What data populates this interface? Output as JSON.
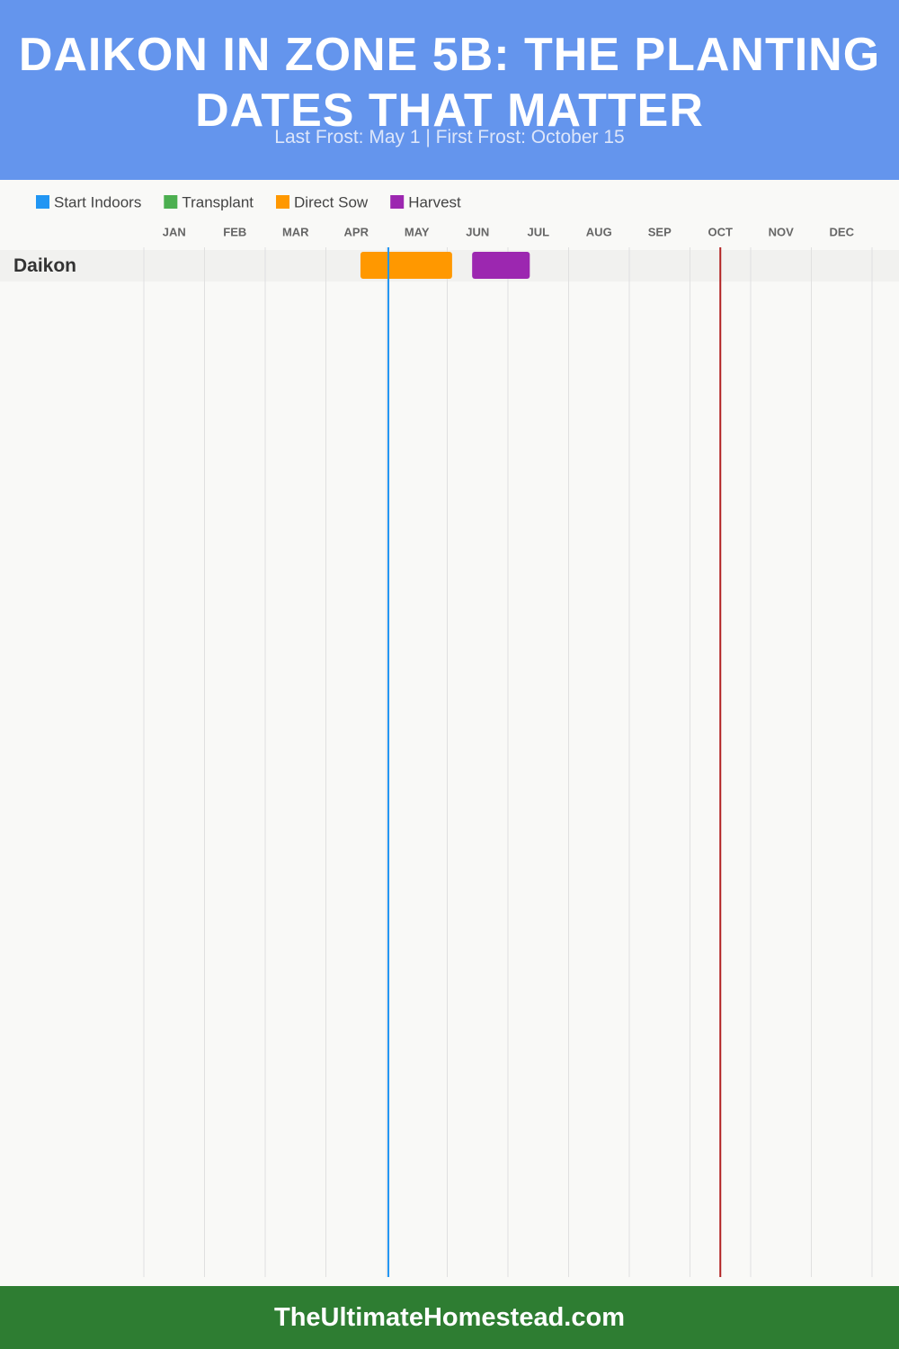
{
  "chart_data": {
    "type": "gantt",
    "title": "DAIKON IN ZONE 5B: THE PLANTING DATES THAT MATTER",
    "subtitle": "Last Frost: May 1 | First Frost: October 15",
    "footer": "TheUltimateHomestead.com",
    "categories": [
      "JAN",
      "FEB",
      "MAR",
      "APR",
      "MAY",
      "JUN",
      "JUL",
      "AUG",
      "SEP",
      "OCT",
      "NOV",
      "DEC"
    ],
    "rows": [
      "Daikon"
    ],
    "xlim": [
      0,
      12
    ],
    "series": [
      {
        "name": "Start Indoors",
        "color": "#2196f3",
        "start": [
          null
        ],
        "end": [
          null
        ]
      },
      {
        "name": "Transplant",
        "color": "#4caf50",
        "start": [
          null
        ],
        "end": [
          null
        ]
      },
      {
        "name": "Direct Sow",
        "color": "#ff9800",
        "start": [
          3.57
        ],
        "end": [
          5.08
        ]
      },
      {
        "name": "Harvest",
        "color": "#9c27b0",
        "start": [
          5.41
        ],
        "end": [
          6.36
        ]
      }
    ],
    "frost_lines": [
      {
        "value": 4.03,
        "color": "#2196f3"
      },
      {
        "value": 9.5,
        "color": "#b22222"
      }
    ]
  }
}
